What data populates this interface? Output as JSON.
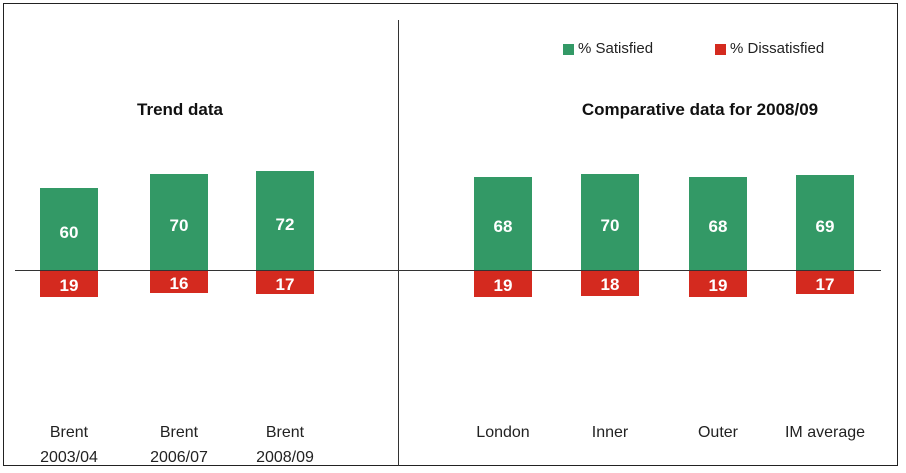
{
  "chart_data": [
    {
      "type": "diverging-bar",
      "title": "Trend data",
      "categories": [
        "Brent 2003/04",
        "Brent 2006/07",
        "Brent 2008/09"
      ],
      "series": [
        {
          "color": "#339966",
          "values": [
            60,
            70,
            72
          ]
        },
        {
          "color": "#d42a1f",
          "values": [
            19,
            16,
            17
          ]
        }
      ]
    },
    {
      "type": "diverging-bar",
      "title": "Comparative data for 2008/09",
      "categories": [
        "London",
        "Inner",
        "Outer",
        "IM average"
      ],
      "series": [
        {
          "name": "% Satisfied",
          "color": "#339966",
          "values": [
            68,
            70,
            68,
            69
          ]
        },
        {
          "name": "% Dissatisfied",
          "color": "#d42a1f",
          "values": [
            19,
            18,
            19,
            17
          ]
        }
      ]
    }
  ]
}
